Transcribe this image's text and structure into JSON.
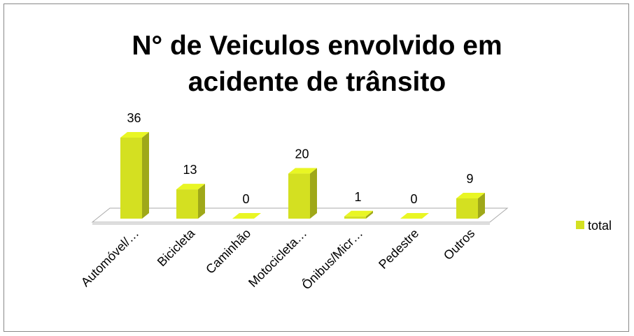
{
  "chart_data": {
    "type": "bar",
    "title": "N° de Veiculos envolvido em acidente de trânsito",
    "categories": [
      "Automóvel/…",
      "Bicicleta",
      "Caminhão",
      "Motocicleta…",
      "Ônibus/Micr…",
      "Pedestre",
      "Outros"
    ],
    "series": [
      {
        "name": "total",
        "color": "#d4e021",
        "values": [
          36,
          13,
          0,
          20,
          1,
          0,
          9
        ]
      }
    ],
    "legend": "right"
  }
}
